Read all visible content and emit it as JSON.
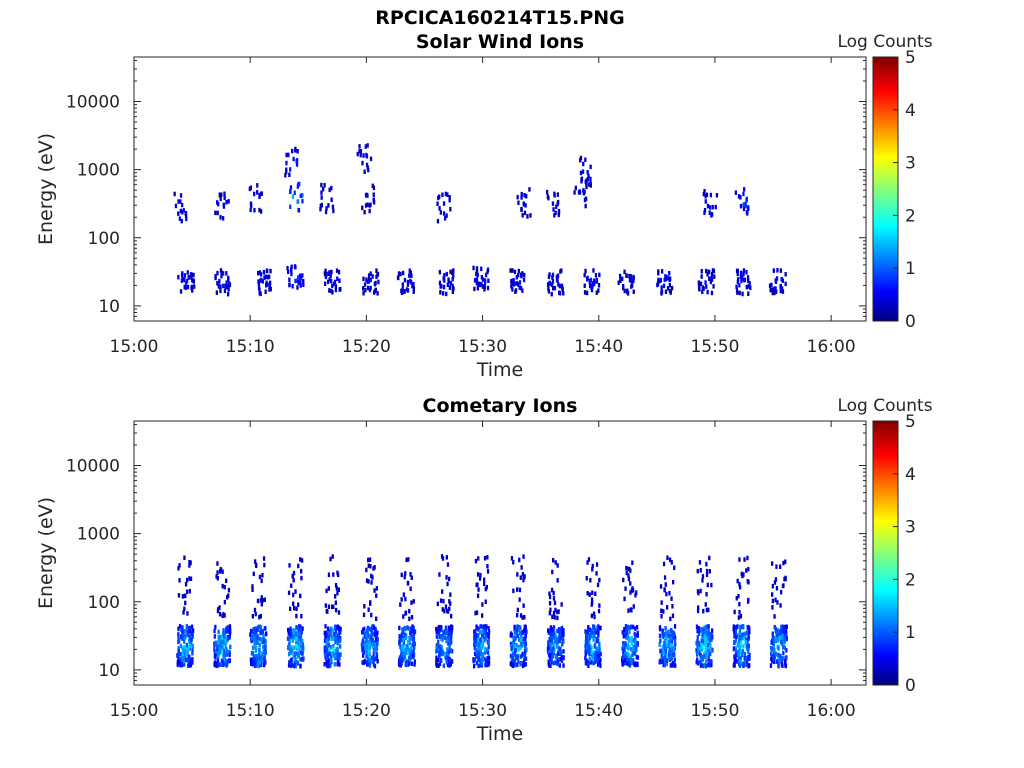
{
  "figure": {
    "title": "RPCICA160214T15.PNG"
  },
  "chart_data": [
    {
      "type": "heatmap",
      "title": "Solar Wind Ions",
      "xlabel": "Time",
      "ylabel": "Energy (eV)",
      "x_ticks": [
        "15:00",
        "15:10",
        "15:20",
        "15:30",
        "15:40",
        "15:50",
        "16:00"
      ],
      "x_range_minutes": [
        0,
        63
      ],
      "y_ticks": [
        "10",
        "100",
        "1000",
        "10000"
      ],
      "y_scale": "log",
      "y_range": [
        6,
        45000
      ],
      "colorbar": {
        "label": "Log Counts",
        "ticks": [
          "0",
          "1",
          "2",
          "3",
          "4",
          "5"
        ],
        "range": [
          0,
          5
        ],
        "colormap": "jet"
      },
      "clusters": [
        {
          "t": 4.4,
          "e": 24,
          "v": 0.6
        },
        {
          "t": 7.6,
          "e": 24,
          "v": 0.6
        },
        {
          "t": 11.0,
          "e": 24,
          "v": 0.6
        },
        {
          "t": 13.8,
          "e": 28,
          "v": 0.8
        },
        {
          "t": 17.0,
          "e": 24,
          "v": 0.6
        },
        {
          "t": 20.3,
          "e": 24,
          "v": 0.6
        },
        {
          "t": 23.3,
          "e": 24,
          "v": 0.6
        },
        {
          "t": 26.8,
          "e": 24,
          "v": 0.6
        },
        {
          "t": 29.8,
          "e": 26,
          "v": 0.6
        },
        {
          "t": 33.0,
          "e": 24,
          "v": 0.6
        },
        {
          "t": 36.2,
          "e": 24,
          "v": 0.6
        },
        {
          "t": 39.3,
          "e": 24,
          "v": 0.6
        },
        {
          "t": 42.3,
          "e": 24,
          "v": 0.6
        },
        {
          "t": 45.6,
          "e": 24,
          "v": 0.6
        },
        {
          "t": 49.2,
          "e": 24,
          "v": 0.6
        },
        {
          "t": 52.3,
          "e": 24,
          "v": 0.6
        },
        {
          "t": 55.3,
          "e": 24,
          "v": 0.6
        },
        {
          "t": 4.0,
          "e": 300,
          "v": 0.6
        },
        {
          "t": 7.5,
          "e": 320,
          "v": 0.6
        },
        {
          "t": 10.4,
          "e": 400,
          "v": 0.6
        },
        {
          "t": 13.8,
          "e": 420,
          "v": 1.4
        },
        {
          "t": 16.5,
          "e": 400,
          "v": 0.6
        },
        {
          "t": 20.0,
          "e": 400,
          "v": 0.5
        },
        {
          "t": 26.6,
          "e": 300,
          "v": 0.5
        },
        {
          "t": 33.5,
          "e": 350,
          "v": 0.5
        },
        {
          "t": 36.0,
          "e": 350,
          "v": 0.5
        },
        {
          "t": 38.4,
          "e": 500,
          "v": 0.5
        },
        {
          "t": 49.5,
          "e": 350,
          "v": 0.6
        },
        {
          "t": 52.3,
          "e": 350,
          "v": 0.9
        },
        {
          "t": 13.5,
          "e": 1400,
          "v": 0.8
        },
        {
          "t": 19.7,
          "e": 1600,
          "v": 0.5
        },
        {
          "t": 38.9,
          "e": 1000,
          "v": 0.5
        }
      ]
    },
    {
      "type": "heatmap",
      "title": "Cometary Ions",
      "xlabel": "Time",
      "ylabel": "Energy (eV)",
      "x_ticks": [
        "15:00",
        "15:10",
        "15:20",
        "15:30",
        "15:40",
        "15:50",
        "16:00"
      ],
      "x_range_minutes": [
        0,
        63
      ],
      "y_ticks": [
        "10",
        "100",
        "1000",
        "10000"
      ],
      "y_scale": "log",
      "y_range": [
        6,
        45000
      ],
      "colorbar": {
        "label": "Log Counts",
        "ticks": [
          "0",
          "1",
          "2",
          "3",
          "4",
          "5"
        ],
        "range": [
          0,
          5
        ],
        "colormap": "jet"
      },
      "clusters": [
        {
          "t": 4.3,
          "e": 24,
          "v": 1.5
        },
        {
          "t": 7.5,
          "e": 24,
          "v": 1.5
        },
        {
          "t": 10.6,
          "e": 24,
          "v": 1.6
        },
        {
          "t": 13.8,
          "e": 24,
          "v": 1.6
        },
        {
          "t": 17.0,
          "e": 24,
          "v": 1.6
        },
        {
          "t": 20.2,
          "e": 24,
          "v": 1.5
        },
        {
          "t": 23.4,
          "e": 24,
          "v": 1.5
        },
        {
          "t": 26.6,
          "e": 24,
          "v": 1.4
        },
        {
          "t": 29.8,
          "e": 24,
          "v": 1.5
        },
        {
          "t": 33.0,
          "e": 24,
          "v": 1.5
        },
        {
          "t": 36.2,
          "e": 24,
          "v": 1.4
        },
        {
          "t": 39.4,
          "e": 24,
          "v": 1.5
        },
        {
          "t": 42.6,
          "e": 24,
          "v": 1.5
        },
        {
          "t": 45.8,
          "e": 24,
          "v": 1.5
        },
        {
          "t": 49.0,
          "e": 24,
          "v": 1.6
        },
        {
          "t": 52.2,
          "e": 24,
          "v": 1.6
        },
        {
          "t": 55.4,
          "e": 24,
          "v": 1.5
        }
      ]
    }
  ]
}
